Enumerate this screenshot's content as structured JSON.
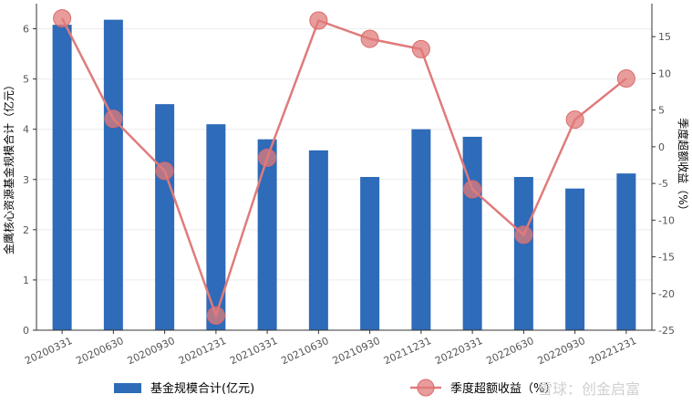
{
  "chart_data": {
    "type": "bar+line",
    "categories": [
      "20200331",
      "20200630",
      "20200930",
      "20201231",
      "20210331",
      "20210630",
      "20210930",
      "20211231",
      "20220331",
      "20220630",
      "20220930",
      "20221231"
    ],
    "series": [
      {
        "name": "基金规模合计(亿元)",
        "type": "bar",
        "axis": "left",
        "color": "#2e6bb8",
        "values": [
          6.08,
          6.18,
          4.5,
          4.1,
          3.8,
          3.58,
          3.05,
          4.0,
          3.85,
          3.05,
          2.82,
          3.12
        ]
      },
      {
        "name": "季度超额收益（%）",
        "type": "line",
        "axis": "right",
        "color": "#e07b7b",
        "values": [
          17.5,
          3.8,
          -3.3,
          -23.0,
          -1.5,
          17.2,
          14.7,
          13.3,
          -5.8,
          -12.0,
          3.7,
          9.3
        ]
      }
    ],
    "ylabel_left": "金鹰核心资源基金规模合计（亿元）",
    "ylabel_right": "季度超额收益（%）",
    "ylim_left": [
      0,
      6.5
    ],
    "ylim_right": [
      -25,
      19.5
    ],
    "yticks_left": [
      "0",
      "1",
      "2",
      "3",
      "4",
      "5",
      "6"
    ],
    "yticks_right": [
      "-25",
      "-20",
      "-15",
      "-10",
      "-5",
      "0",
      "5",
      "10",
      "15"
    ],
    "grid": "horizontal",
    "legend_position": "bottom"
  },
  "watermark": "雪球：创金启富"
}
